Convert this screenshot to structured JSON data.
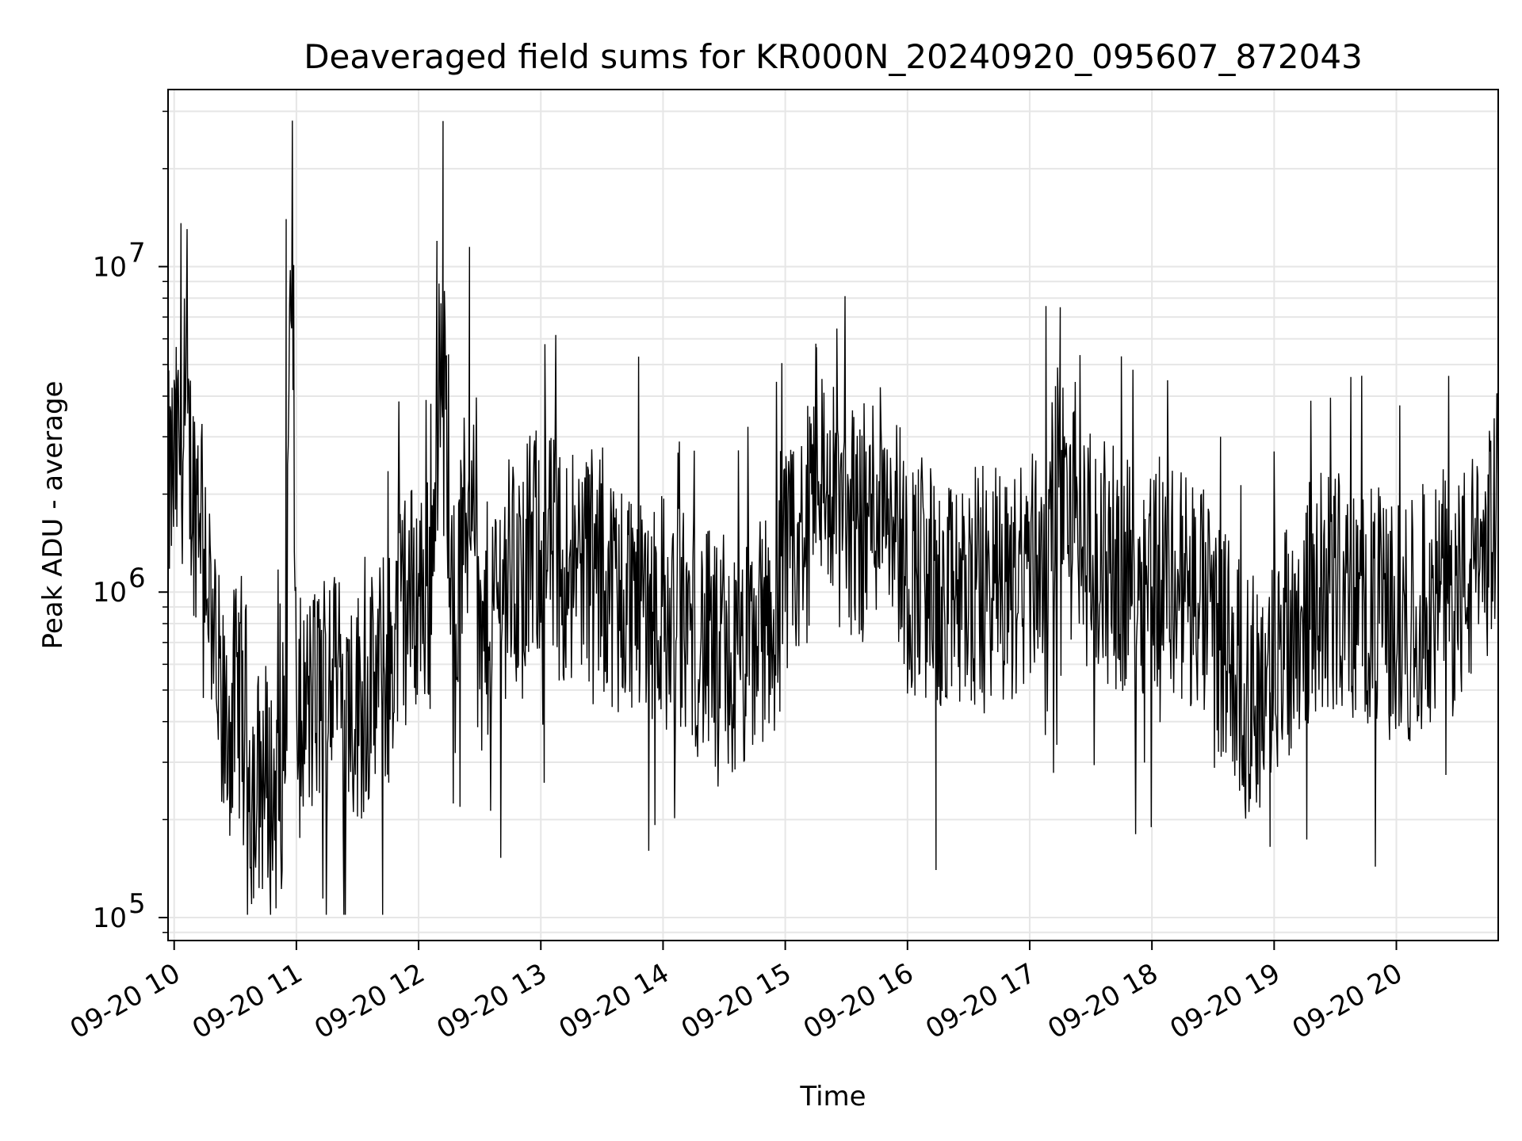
{
  "chart_data": {
    "type": "line",
    "title": "Deaveraged field sums for KR000N_20240920_095607_872043",
    "xlabel": "Time",
    "ylabel": "Peak ADU - average",
    "y_scale": "log",
    "ylim": [
      85000,
      35000000
    ],
    "xlim": [
      "2024-09-20 09:57",
      "2024-09-20 20:50"
    ],
    "grid": true,
    "line_color": "#000000",
    "x_ticks": [
      {
        "time": "2024-09-20 10:00",
        "label": "09-20 10"
      },
      {
        "time": "2024-09-20 11:00",
        "label": "09-20 11"
      },
      {
        "time": "2024-09-20 12:00",
        "label": "09-20 12"
      },
      {
        "time": "2024-09-20 13:00",
        "label": "09-20 13"
      },
      {
        "time": "2024-09-20 14:00",
        "label": "09-20 14"
      },
      {
        "time": "2024-09-20 15:00",
        "label": "09-20 15"
      },
      {
        "time": "2024-09-20 16:00",
        "label": "09-20 16"
      },
      {
        "time": "2024-09-20 17:00",
        "label": "09-20 17"
      },
      {
        "time": "2024-09-20 18:00",
        "label": "09-20 18"
      },
      {
        "time": "2024-09-20 19:00",
        "label": "09-20 19"
      },
      {
        "time": "2024-09-20 20:00",
        "label": "09-20 20"
      }
    ],
    "y_ticks": [
      {
        "value": 100000,
        "base": "10",
        "exp": "5"
      },
      {
        "value": 1000000,
        "base": "10",
        "exp": "6"
      },
      {
        "value": 10000000,
        "base": "10",
        "exp": "7"
      }
    ],
    "series": [
      {
        "x": [
          "2024-09-20 09:57",
          "2024-09-20 10:03",
          "2024-09-20 10:06",
          "2024-09-20 10:10",
          "2024-09-20 10:13",
          "2024-09-20 10:16",
          "2024-09-20 10:20",
          "2024-09-20 10:25",
          "2024-09-20 10:30",
          "2024-09-20 10:34",
          "2024-09-20 10:37",
          "2024-09-20 10:40",
          "2024-09-20 10:44",
          "2024-09-20 10:48",
          "2024-09-20 10:52",
          "2024-09-20 10:55",
          "2024-09-20 10:56",
          "2024-09-20 10:58",
          "2024-09-20 11:00",
          "2024-09-20 11:08",
          "2024-09-20 11:15",
          "2024-09-20 11:22",
          "2024-09-20 11:30",
          "2024-09-20 11:38",
          "2024-09-20 11:45",
          "2024-09-20 11:52",
          "2024-09-20 12:00",
          "2024-09-20 12:06",
          "2024-09-20 12:09",
          "2024-09-20 12:12",
          "2024-09-20 12:15",
          "2024-09-20 12:18",
          "2024-09-20 12:22",
          "2024-09-20 12:25",
          "2024-09-20 12:27",
          "2024-09-20 12:30",
          "2024-09-20 12:35",
          "2024-09-20 12:40",
          "2024-09-20 12:45",
          "2024-09-20 12:50",
          "2024-09-20 12:55",
          "2024-09-20 13:00",
          "2024-09-20 13:10",
          "2024-09-20 13:20",
          "2024-09-20 13:30",
          "2024-09-20 13:40",
          "2024-09-20 13:50",
          "2024-09-20 14:00",
          "2024-09-20 14:05",
          "2024-09-20 14:10",
          "2024-09-20 14:20",
          "2024-09-20 14:30",
          "2024-09-20 14:40",
          "2024-09-20 14:50",
          "2024-09-20 15:00",
          "2024-09-20 15:10",
          "2024-09-20 15:15",
          "2024-09-20 15:20",
          "2024-09-20 15:30",
          "2024-09-20 15:40",
          "2024-09-20 15:50",
          "2024-09-20 16:00",
          "2024-09-20 16:10",
          "2024-09-20 16:14",
          "2024-09-20 16:20",
          "2024-09-20 16:30",
          "2024-09-20 16:40",
          "2024-09-20 16:50",
          "2024-09-20 17:00",
          "2024-09-20 17:10",
          "2024-09-20 17:15",
          "2024-09-20 17:20",
          "2024-09-20 17:30",
          "2024-09-20 17:40",
          "2024-09-20 17:50",
          "2024-09-20 18:00",
          "2024-09-20 18:10",
          "2024-09-20 18:20",
          "2024-09-20 18:30",
          "2024-09-20 18:40",
          "2024-09-20 18:45",
          "2024-09-20 18:50",
          "2024-09-20 18:55",
          "2024-09-20 19:00",
          "2024-09-20 19:10",
          "2024-09-20 19:20",
          "2024-09-20 19:30",
          "2024-09-20 19:40",
          "2024-09-20 19:50",
          "2024-09-20 20:00",
          "2024-09-20 20:10",
          "2024-09-20 20:20",
          "2024-09-20 20:30",
          "2024-09-20 20:40",
          "2024-09-20 20:50"
        ],
        "y": [
          2000000,
          2800000,
          3000000,
          1900000,
          2200000,
          1300000,
          600000,
          350000,
          450000,
          500000,
          300000,
          250000,
          280000,
          230000,
          250000,
          400000,
          2500000,
          14000000,
          400000,
          450000,
          550000,
          500000,
          450000,
          500000,
          600000,
          900000,
          1000000,
          1000000,
          3500000,
          5000000,
          2000000,
          800000,
          1500000,
          1800000,
          3800000,
          600000,
          900000,
          1000000,
          1200000,
          1100000,
          1300000,
          1500000,
          1200000,
          1300000,
          1100000,
          1000000,
          1000000,
          900000,
          750000,
          800000,
          700000,
          550000,
          600000,
          800000,
          1100000,
          1400000,
          3000000,
          2000000,
          1700000,
          1600000,
          2500000,
          1100000,
          1200000,
          900000,
          900000,
          1000000,
          1100000,
          1000000,
          1200000,
          1500000,
          2500000,
          1700000,
          1300000,
          1200000,
          1100000,
          1200000,
          1100000,
          1000000,
          800000,
          650000,
          450000,
          500000,
          500000,
          600000,
          800000,
          1000000,
          1000000,
          900000,
          900000,
          800000,
          850000,
          900000,
          1000000,
          1200000,
          1800000
        ]
      }
    ]
  }
}
